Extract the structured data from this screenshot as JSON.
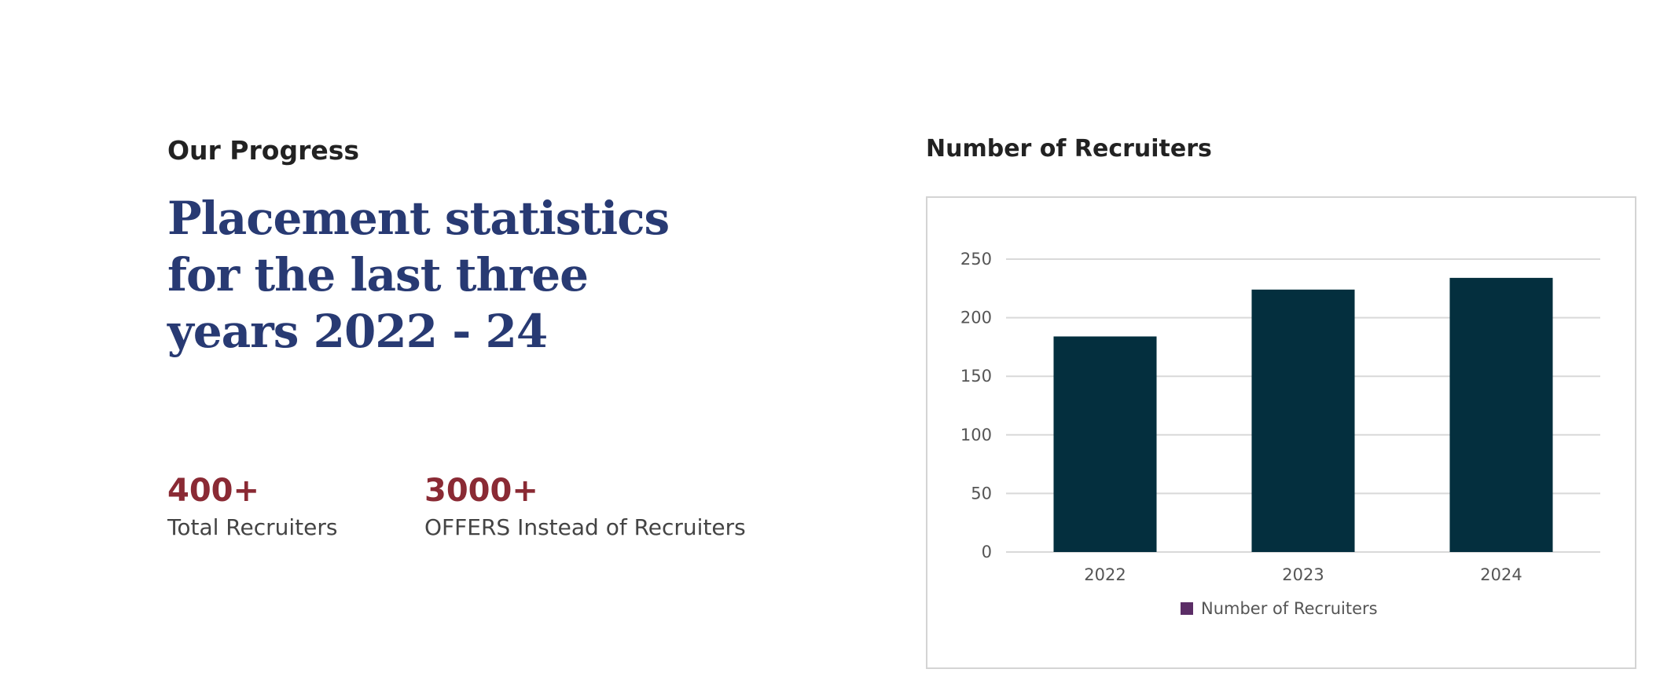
{
  "section": {
    "eyebrow": "Our Progress",
    "headline_lines": [
      "Placement statistics",
      "for the last three",
      "years 2022 - 24"
    ]
  },
  "stats": [
    {
      "value": "400+",
      "label": "Total Recruiters"
    },
    {
      "value": "3000+",
      "label": "OFFERS Instead of Recruiters"
    }
  ],
  "chart_heading": "Number of Recruiters",
  "colors": {
    "headline": "#283a73",
    "stat_value": "#8a2a34",
    "bar": "#042f3e",
    "legend_swatch": "#5b2d66",
    "grid": "#d9d9d9"
  },
  "chart_data": {
    "type": "bar",
    "categories": [
      "2022",
      "2023",
      "2024"
    ],
    "series": [
      {
        "name": "Number of Recruiters",
        "values": [
          184,
          224,
          234
        ]
      }
    ],
    "ylim": [
      0,
      250
    ],
    "yticks": [
      0,
      50,
      100,
      150,
      200,
      250
    ],
    "grid": true,
    "legend": "bottom-center",
    "title": "",
    "xlabel": "",
    "ylabel": ""
  }
}
